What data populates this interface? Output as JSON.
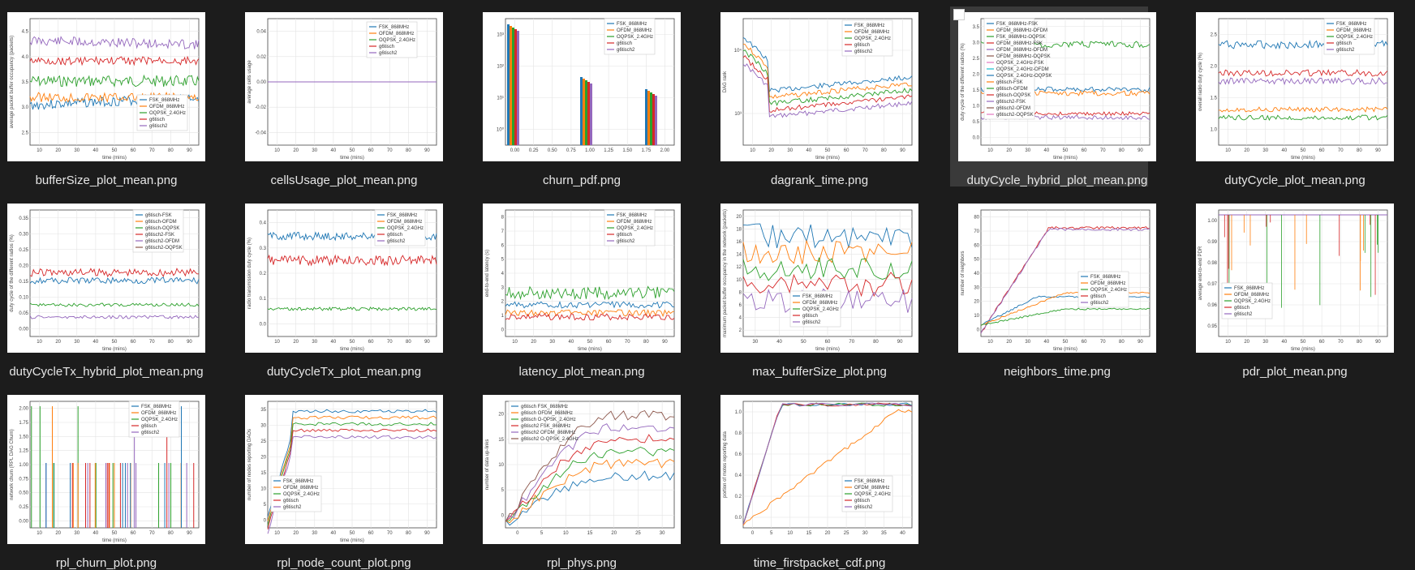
{
  "colors": {
    "background": "#1c1c1c",
    "selected_tile": "#3a3a3a",
    "caption": "#e6e6e6",
    "series": [
      "#1f77b4",
      "#ff7f0e",
      "#2ca02c",
      "#d62728",
      "#9467bd",
      "#8c564b",
      "#e377c2",
      "#17becf"
    ]
  },
  "files": [
    {
      "name": "bufferSize_plot_mean.png",
      "xlabel": "time (mins)",
      "ylabel": "average packet buffer occupancy (packets)",
      "legend": [
        "FSK_868MHz",
        "OFDM_868MHz",
        "OQPSK_2.4GHz",
        "g6tisch",
        "g6tisch2"
      ]
    },
    {
      "name": "cellsUsage_plot_mean.png",
      "xlabel": "time (mins)",
      "ylabel": "average cells usage",
      "legend": [
        "FSK_868MHz",
        "OFDM_868MHz",
        "OQPSK_2.4GHz",
        "g6tisch",
        "g6tisch2"
      ]
    },
    {
      "name": "churn_pdf.png",
      "xlabel": "",
      "ylabel": "",
      "legend": [
        "FSK_868MHz",
        "OFDM_868MHz",
        "OQPSK_2.4GHz",
        "g6tisch",
        "g6tisch2"
      ]
    },
    {
      "name": "dagrank_time.png",
      "xlabel": "time (mins)",
      "ylabel": "DAG rank",
      "legend": [
        "FSK_868MHz",
        "OFDM_868MHz",
        "OQPSK_2.4GHz",
        "g6tisch",
        "g6tisch2"
      ]
    },
    {
      "name": "dutyCycle_hybrid_plot_mean.png",
      "xlabel": "time (mins)",
      "ylabel": "duty cycle of the different radios (%)",
      "legend": [
        "FSK_868MHz-FSK",
        "OFDM_868MHz-OFDM",
        "FSK_868MHz-OQPSK",
        "OFDM_868MHz-FSK",
        "OFDM_868MHz-OFDM",
        "OFDM_868MHz-OQPSK",
        "OQPSK_2.4GHz-FSK",
        "OQPSK_2.4GHz-OFDM",
        "OQPSK_2.4GHz-OQPSK",
        "g6tisch-FSK",
        "g6tisch-OFDM",
        "g6tisch-OQPSK",
        "g6tisch2-FSK",
        "g6tisch2-OFDM",
        "g6tisch2-OQPSK"
      ]
    },
    {
      "name": "dutyCycle_plot_mean.png",
      "xlabel": "time (mins)",
      "ylabel": "overall radio duty cycle (%)",
      "legend": [
        "FSK_868MHz",
        "OFDM_868MHz",
        "OQPSK_2.4GHz",
        "g6tisch",
        "g6tisch2"
      ]
    },
    {
      "name": "dutyCycleTx_hybrid_plot_mean.png",
      "xlabel": "time (mins)",
      "ylabel": "duty cycle of the different radios (%)",
      "legend": [
        "g6tisch-FSK",
        "g6tisch-OFDM",
        "g6tisch-OQPSK",
        "g6tisch2-FSK",
        "g6tisch2-OFDM",
        "g6tisch2-OQPSK"
      ]
    },
    {
      "name": "dutyCycleTx_plot_mean.png",
      "xlabel": "time (mins)",
      "ylabel": "radio transmission duty cycle (%)",
      "legend": [
        "FSK_868MHz",
        "OFDM_868MHz",
        "OQPSK_2.4GHz",
        "g6tisch",
        "g6tisch2"
      ]
    },
    {
      "name": "latency_plot_mean.png",
      "xlabel": "time (mins)",
      "ylabel": "end-to-end latency (s)",
      "legend": [
        "FSK_868MHz",
        "OFDM_868MHz",
        "OQPSK_2.4GHz",
        "g6tisch",
        "g6tisch2"
      ]
    },
    {
      "name": "max_bufferSize_plot.png",
      "xlabel": "time (mins)",
      "ylabel": "maximum packet buffer occupancy in the network (packets)",
      "legend": [
        "FSK_868MHz",
        "OFDM_868MHz",
        "OQPSK_2.4GHz",
        "g6tisch",
        "g6tisch2"
      ]
    },
    {
      "name": "neighbors_time.png",
      "xlabel": "time (mins)",
      "ylabel": "number of neighbors",
      "legend": [
        "FSK_868MHz",
        "OFDM_868MHz",
        "OQPSK_2.4GHz",
        "g6tisch",
        "g6tisch2"
      ]
    },
    {
      "name": "pdr_plot_mean.png",
      "xlabel": "time (mins)",
      "ylabel": "average end-to-end PDR",
      "legend": [
        "FSK_868MHz",
        "OFDM_868MHz",
        "OQPSK_2.4GHz",
        "g6tisch",
        "g6tisch2"
      ]
    },
    {
      "name": "rpl_churn_plot.png",
      "xlabel": "time (mins)",
      "ylabel": "network churn (RPL DAG Churn)",
      "legend": [
        "FSK_868MHz",
        "OFDM_868MHz",
        "OQPSK_2.4GHz",
        "g6tisch",
        "g6tisch2"
      ]
    },
    {
      "name": "rpl_node_count_plot.png",
      "xlabel": "time (mins)",
      "ylabel": "number of nodes reporting DAOs",
      "legend": [
        "FSK_868MHz",
        "OFDM_868MHz",
        "OQPSK_2.4GHz",
        "g6tisch",
        "g6tisch2"
      ]
    },
    {
      "name": "rpl_phys.png",
      "xlabel": "",
      "ylabel": "number of data up-links",
      "legend": [
        "g6tisch FSK_868MHz",
        "g6tisch OFDM_868MHz",
        "g6tisch O-QPSK_2.4GHz",
        "g6tisch2 FSK_868MHz",
        "g6tisch2 OFDM_868MHz",
        "g6tisch2 O-QPSK_2.4GHz"
      ]
    },
    {
      "name": "time_firstpacket_cdf.png",
      "xlabel": "",
      "ylabel": "portion of motes reporting data",
      "legend": [
        "FSK_868MHz",
        "OFDM_868MHz",
        "OQPSK_2.4GHz",
        "g6tisch",
        "g6tisch2"
      ]
    }
  ]
}
